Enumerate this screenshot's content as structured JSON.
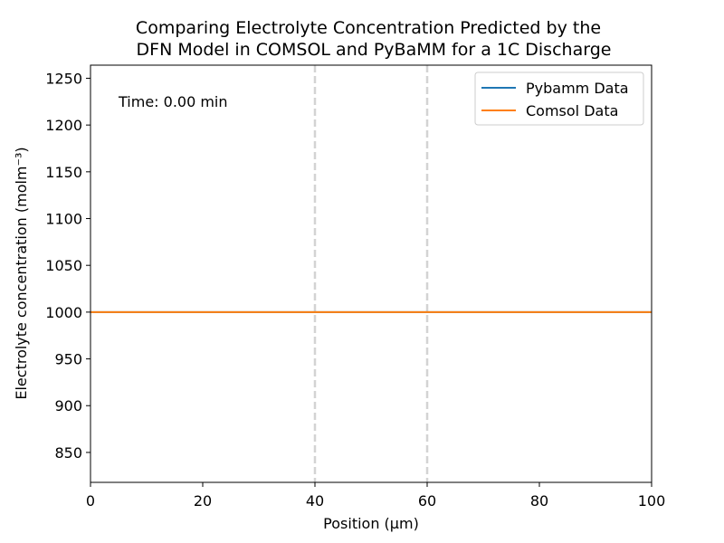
{
  "chart_data": {
    "type": "line",
    "title_line1": "Comparing Electrolyte Concentration Predicted by the",
    "title_line2": "DFN Model in COMSOL and PyBaMM for a 1C Discharge",
    "xlabel": "Position (μm)",
    "ylabel": "Electrolyte concentration (molm⁻³)",
    "xlim": [
      0,
      100
    ],
    "ylim": [
      818,
      1264
    ],
    "x_ticks": [
      0,
      20,
      40,
      60,
      80,
      100
    ],
    "y_ticks": [
      850,
      900,
      950,
      1000,
      1050,
      1100,
      1150,
      1200,
      1250
    ],
    "vlines": [
      40,
      60
    ],
    "vline_color": "#d3d3d3",
    "annotation": "Time: 0.00 min",
    "legend_position": "top-right",
    "grid": false,
    "series": [
      {
        "name": "Pybamm Data",
        "color": "#1f77b4",
        "x": [
          0,
          20,
          40,
          60,
          80,
          100
        ],
        "y": [
          1000,
          1000,
          1000,
          1000,
          1000,
          1000
        ]
      },
      {
        "name": "Comsol Data",
        "color": "#ff7f0e",
        "x": [
          0,
          20,
          40,
          60,
          80,
          100
        ],
        "y": [
          1000,
          1000,
          1000,
          1000,
          1000,
          1000
        ]
      }
    ]
  }
}
